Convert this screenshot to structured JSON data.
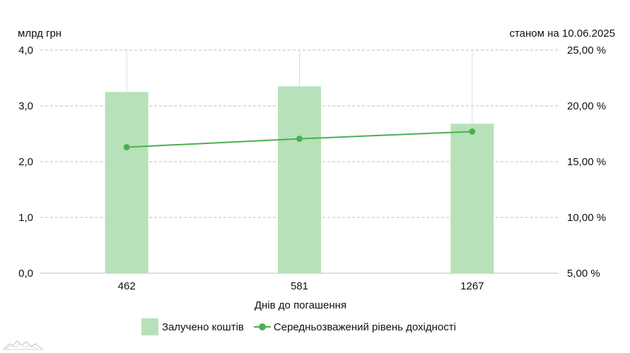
{
  "header": {
    "left_unit": "млрд грн",
    "right_date": "станом на 10.06.2025"
  },
  "legend": {
    "bar_label": "Залучено коштів",
    "line_label": "Середньозважений рівень дохідності"
  },
  "colors": {
    "bar": "#b7e1b9",
    "line": "#4caf50",
    "grid": "#bdbdbd"
  },
  "chart_data": {
    "type": "bar",
    "categories": [
      "462",
      "581",
      "1267"
    ],
    "xlabel": "Днів до погашення",
    "series": [
      {
        "name": "Залучено коштів",
        "type": "bar",
        "axis": "left",
        "values": [
          3.25,
          3.35,
          2.68
        ]
      },
      {
        "name": "Середньозважений рівень дохідності",
        "type": "line",
        "axis": "right",
        "values": [
          16.3,
          17.05,
          17.7
        ]
      }
    ],
    "left_axis": {
      "ylim": [
        0,
        4
      ],
      "ticks": [
        "0,0",
        "1,0",
        "2,0",
        "3,0",
        "4,0"
      ]
    },
    "right_axis": {
      "ylim": [
        5,
        25
      ],
      "ticks": [
        "5,00 %",
        "10,00 %",
        "15,00 %",
        "20,00 %",
        "25,00 %"
      ]
    },
    "grid": true,
    "legend_position": "bottom"
  }
}
